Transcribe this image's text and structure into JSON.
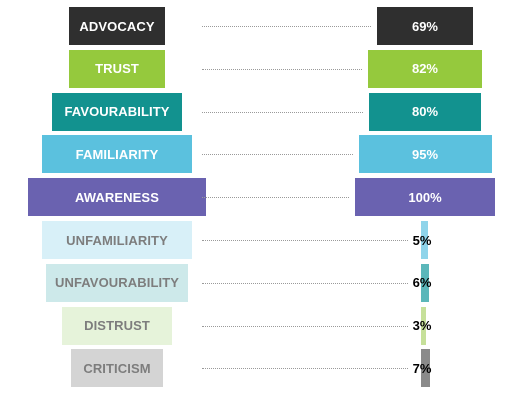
{
  "chart_data": {
    "type": "bar",
    "categories": [
      "ADVOCACY",
      "TRUST",
      "FAVOURABILITY",
      "FAMILIARITY",
      "AWARENESS",
      "UNFAMILIARITY",
      "UNFAVOURABILITY",
      "DISTRUST",
      "CRITICISM"
    ],
    "values": [
      69,
      82,
      80,
      95,
      100,
      5,
      6,
      3,
      7
    ],
    "value_labels": [
      "69%",
      "82%",
      "80%",
      "95%",
      "100%",
      "5%",
      "6%",
      "3%",
      "7%"
    ],
    "unit": "%",
    "title": "",
    "xlabel": "",
    "ylabel": "",
    "xlim": [
      0,
      100
    ],
    "grid": false,
    "legend": "none",
    "colors": [
      "#2f2f2f",
      "#95c93d",
      "#12928f",
      "#5bc1de",
      "#6a62b0",
      "#d8f0f8",
      "#cde9ea",
      "#e6f3da",
      "#d4d4d4"
    ],
    "label_text_colors": [
      "#ffffff",
      "#ffffff",
      "#ffffff",
      "#ffffff",
      "#ffffff",
      "#7d7d7d",
      "#7d7d7d",
      "#7d7d7d",
      "#7d7d7d"
    ],
    "value_bar_colors": [
      "#2f2f2f",
      "#95c93d",
      "#12928f",
      "#5bc1de",
      "#6a62b0",
      "#8fd4ea",
      "#5bb7ba",
      "#c6e09a",
      "#8a8a8a"
    ],
    "value_text_colors": [
      "#ffffff",
      "#ffffff",
      "#ffffff",
      "#ffffff",
      "#ffffff",
      "#000000",
      "#000000",
      "#000000",
      "#000000"
    ]
  }
}
